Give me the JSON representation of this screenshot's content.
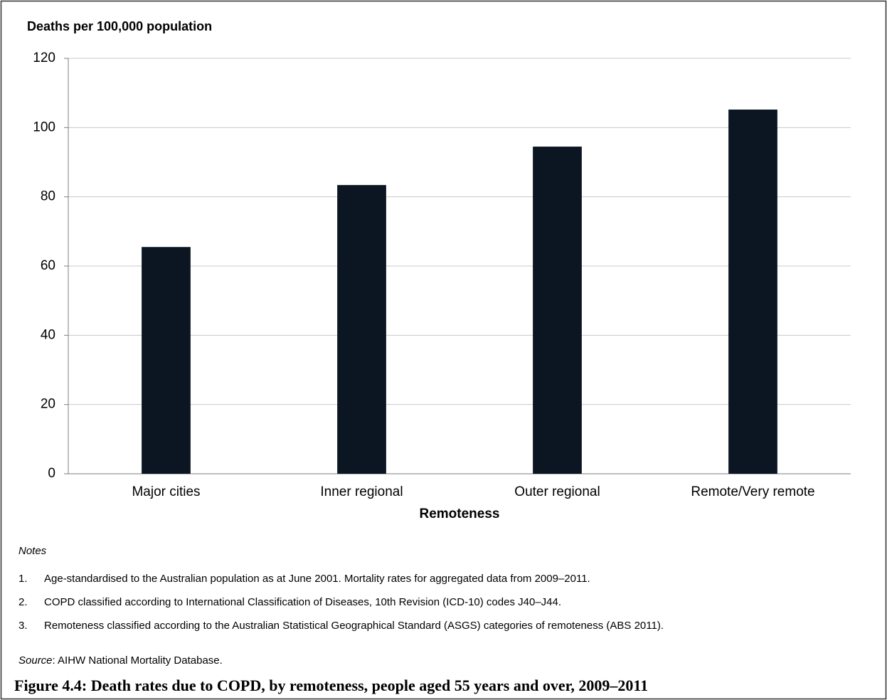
{
  "chart_data": {
    "type": "bar",
    "y_axis_title": "Deaths per 100,000 population",
    "x_axis_title": "Remoteness",
    "categories": [
      "Major cities",
      "Inner regional",
      "Outer regional",
      "Remote/Very remote"
    ],
    "values": [
      65.5,
      83.4,
      94.5,
      105.2
    ],
    "color": "#0b1622",
    "ylim": [
      0,
      120
    ],
    "yticks": [
      0,
      20,
      40,
      60,
      80,
      100,
      120
    ],
    "grid": true
  },
  "notes": {
    "heading": "Notes",
    "items": [
      {
        "number": "1.",
        "text": "Age-standardised to the Australian population as at June 2001. Mortality rates for aggregated data from 2009–2011."
      },
      {
        "number": "2.",
        "text": "COPD classified according to International Classification of Diseases, 10th Revision (ICD-10) codes J40–J44."
      },
      {
        "number": "3.",
        "text": "Remoteness classified according to the Australian Statistical Geographical Standard (ASGS) categories of remoteness (ABS 2011)."
      }
    ]
  },
  "source": {
    "label": "Source",
    "text": ": AIHW National Mortality Database."
  },
  "caption": "Figure 4.4: Death rates due to COPD, by remoteness, people aged 55 years and over, 2009–2011"
}
